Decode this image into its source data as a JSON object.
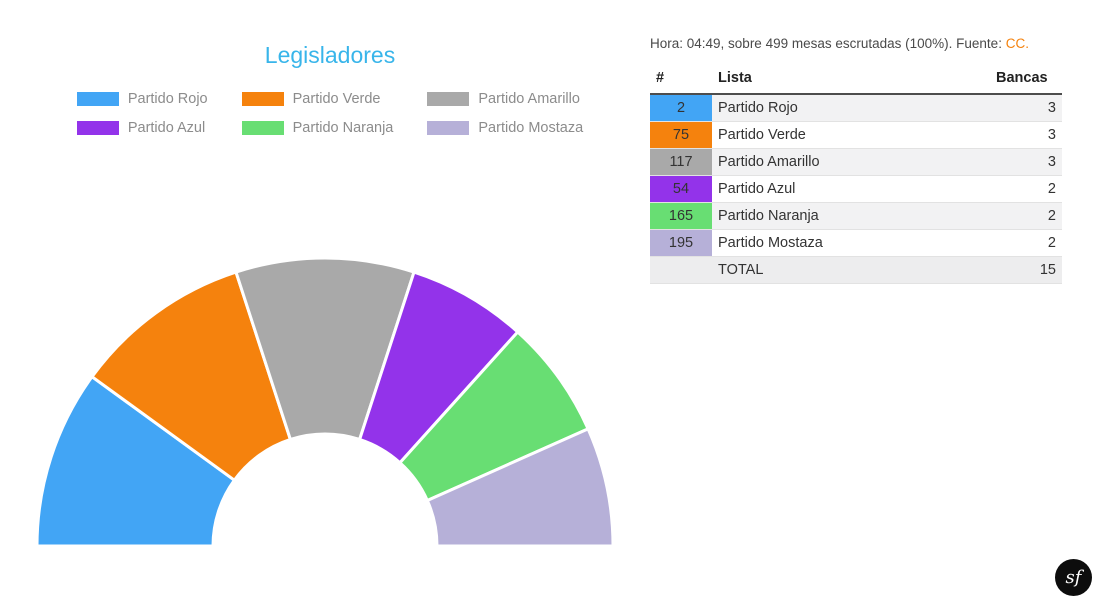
{
  "title": "Legisladores",
  "note": {
    "prefix": "Hora: 04:49, sobre 499 mesas escrutadas (100%). Fuente: ",
    "source": "CC."
  },
  "legend": [
    {
      "label": "Partido Rojo",
      "color": "#42a5f5"
    },
    {
      "label": "Partido Verde",
      "color": "#f5820d"
    },
    {
      "label": "Partido Amarillo",
      "color": "#a9a9a9"
    },
    {
      "label": "Partido Azul",
      "color": "#9333ea"
    },
    {
      "label": "Partido Naranja",
      "color": "#68de73"
    },
    {
      "label": "Partido Mostaza",
      "color": "#b6b0d8"
    }
  ],
  "table": {
    "columns": [
      "#",
      "Lista",
      "Bancas"
    ],
    "rows": [
      {
        "num": "2",
        "color": "#42a5f5",
        "lista": "Partido Rojo",
        "bancas": "3"
      },
      {
        "num": "75",
        "color": "#f5820d",
        "lista": "Partido Verde",
        "bancas": "3"
      },
      {
        "num": "117",
        "color": "#a9a9a9",
        "lista": "Partido Amarillo",
        "bancas": "3"
      },
      {
        "num": "54",
        "color": "#9333ea",
        "lista": "Partido Azul",
        "bancas": "2"
      },
      {
        "num": "165",
        "color": "#68de73",
        "lista": "Partido Naranja",
        "bancas": "2"
      },
      {
        "num": "195",
        "color": "#b6b0d8",
        "lista": "Partido Mostaza",
        "bancas": "2"
      }
    ],
    "total_label": "TOTAL",
    "total_value": "15"
  },
  "chart_data": {
    "type": "pie",
    "variant": "half-donut-hemicycle",
    "title": "Legisladores",
    "categories": [
      "Partido Rojo",
      "Partido Verde",
      "Partido Amarillo",
      "Partido Azul",
      "Partido Naranja",
      "Partido Mostaza"
    ],
    "values": [
      3,
      3,
      3,
      2,
      2,
      2
    ],
    "colors": [
      "#42a5f5",
      "#f5820d",
      "#a9a9a9",
      "#9333ea",
      "#68de73",
      "#b6b0d8"
    ],
    "total_seats": 15,
    "start_angle_deg": 180,
    "end_angle_deg": 0,
    "legend_position": "top"
  },
  "logo_text": "sf",
  "accent_colors": {
    "title": "#38b5ea",
    "source_link": "#f5820d"
  }
}
